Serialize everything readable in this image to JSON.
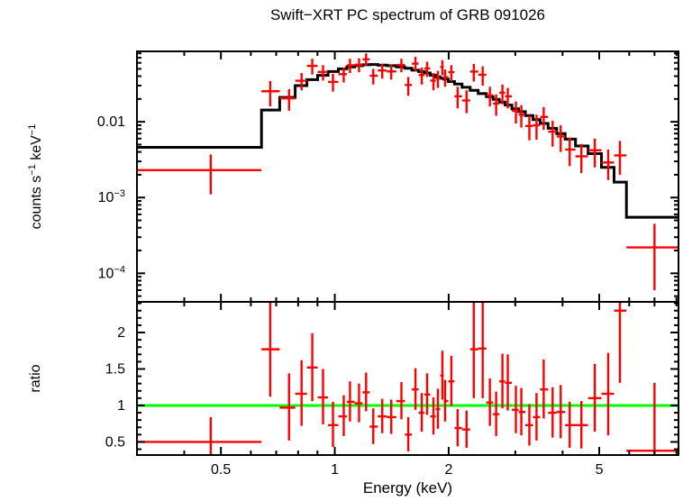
{
  "chart_data": {
    "type": "scatter",
    "title": "Swift−XRT PC spectrum of GRB 091026",
    "xlabel": "Energy (keV)",
    "xscale": "log",
    "xlim": [
      0.3,
      8.1
    ],
    "xticks_major": [
      0.5,
      1,
      2,
      5
    ],
    "xtick_labels": [
      "0.5",
      "1",
      "2",
      "5"
    ],
    "xticks_minor": [
      0.4,
      0.6,
      0.7,
      0.8,
      0.9,
      3,
      4,
      6,
      7,
      8
    ],
    "legend": "none",
    "grid": false,
    "colors": {
      "data": "#ff0000",
      "model": "#000000",
      "refline": "#00ff00",
      "frame": "#000000",
      "background": "#ffffff"
    },
    "panels": [
      {
        "name": "spectrum",
        "ylabel_parts": {
          "pre": "counts s",
          "sup1": "−1",
          "mid": " keV",
          "sup2": "−1"
        },
        "yscale": "log",
        "ylim": [
          4.2e-05,
          0.085
        ],
        "yticks_major": [
          0.01,
          0.001,
          0.0001
        ],
        "ytick_labels": [
          {
            "base": "0.01",
            "sup": ""
          },
          {
            "base": "10",
            "sup": "−3"
          },
          {
            "base": "10",
            "sup": "−4"
          }
        ],
        "yticks_minor": [
          5e-05,
          6e-05,
          7e-05,
          8e-05,
          9e-05,
          0.0002,
          0.0003,
          0.0004,
          0.0005,
          0.0006,
          0.0007,
          0.0008,
          0.0009,
          0.002,
          0.003,
          0.004,
          0.005,
          0.006,
          0.007,
          0.008,
          0.009,
          0.02,
          0.03,
          0.04,
          0.05,
          0.06,
          0.07,
          0.08
        ],
        "points_format": [
          "energy_keV",
          "bin_lo",
          "bin_hi",
          "rate",
          "rate_lo",
          "rate_hi"
        ],
        "points": [
          [
            0.47,
            0.3,
            0.64,
            0.0023,
            0.0011,
            0.0037
          ],
          [
            0.675,
            0.64,
            0.715,
            0.0253,
            0.016,
            0.0345
          ],
          [
            0.757,
            0.715,
            0.786,
            0.0204,
            0.014,
            0.027
          ],
          [
            0.817,
            0.786,
            0.844,
            0.0348,
            0.026,
            0.044
          ],
          [
            0.872,
            0.844,
            0.901,
            0.0547,
            0.042,
            0.068
          ],
          [
            0.931,
            0.901,
            0.96,
            0.0455,
            0.035,
            0.056
          ],
          [
            0.989,
            0.96,
            1.022,
            0.0336,
            0.025,
            0.043
          ],
          [
            1.056,
            1.022,
            1.076,
            0.0425,
            0.033,
            0.052
          ],
          [
            1.097,
            1.076,
            1.128,
            0.0557,
            0.044,
            0.068
          ],
          [
            1.159,
            1.128,
            1.184,
            0.0567,
            0.045,
            0.069
          ],
          [
            1.21,
            1.184,
            1.237,
            0.0667,
            0.054,
            0.08
          ],
          [
            1.264,
            1.237,
            1.299,
            0.0405,
            0.031,
            0.05
          ],
          [
            1.335,
            1.299,
            1.372,
            0.0476,
            0.037,
            0.058
          ],
          [
            1.41,
            1.372,
            1.454,
            0.0462,
            0.036,
            0.057
          ],
          [
            1.5,
            1.454,
            1.532,
            0.0562,
            0.045,
            0.068
          ],
          [
            1.564,
            1.532,
            1.599,
            0.0306,
            0.022,
            0.039
          ],
          [
            1.634,
            1.599,
            1.666,
            0.0586,
            0.046,
            0.072
          ],
          [
            1.698,
            1.666,
            1.726,
            0.0414,
            0.031,
            0.052
          ],
          [
            1.754,
            1.726,
            1.788,
            0.0506,
            0.039,
            0.062
          ],
          [
            1.823,
            1.788,
            1.848,
            0.0349,
            0.026,
            0.044
          ],
          [
            1.873,
            1.848,
            1.899,
            0.0371,
            0.028,
            0.047
          ],
          [
            1.925,
            1.899,
            1.941,
            0.0529,
            0.041,
            0.065
          ],
          [
            1.957,
            1.941,
            1.995,
            0.0387,
            0.029,
            0.049
          ],
          [
            2.033,
            1.995,
            2.072,
            0.0452,
            0.034,
            0.056
          ],
          [
            2.112,
            2.072,
            2.17,
            0.0217,
            0.015,
            0.029
          ],
          [
            2.23,
            2.17,
            2.279,
            0.0191,
            0.013,
            0.026
          ],
          [
            2.33,
            2.279,
            2.394,
            0.046,
            0.034,
            0.058
          ],
          [
            2.46,
            2.394,
            2.514,
            0.0418,
            0.03,
            0.054
          ],
          [
            2.57,
            2.514,
            2.62,
            0.0224,
            0.016,
            0.029
          ],
          [
            2.67,
            2.62,
            2.721,
            0.0174,
            0.012,
            0.023
          ],
          [
            2.774,
            2.721,
            2.82,
            0.0242,
            0.017,
            0.031
          ],
          [
            2.866,
            2.82,
            2.938,
            0.0217,
            0.015,
            0.028
          ],
          [
            3.011,
            2.938,
            3.061,
            0.0139,
            0.0095,
            0.0185
          ],
          [
            3.112,
            3.061,
            3.189,
            0.0124,
            0.0084,
            0.0166
          ],
          [
            3.268,
            3.189,
            3.34,
            0.0088,
            0.0057,
            0.0121
          ],
          [
            3.414,
            3.34,
            3.489,
            0.009,
            0.0058,
            0.0124
          ],
          [
            3.566,
            3.489,
            3.664,
            0.0116,
            0.0078,
            0.0156
          ],
          [
            3.765,
            3.664,
            3.859,
            0.0074,
            0.0047,
            0.0103
          ],
          [
            3.955,
            3.859,
            4.064,
            0.0064,
            0.004,
            0.009
          ],
          [
            4.177,
            4.064,
            4.328,
            0.0043,
            0.0026,
            0.0062
          ],
          [
            4.485,
            4.328,
            4.672,
            0.0035,
            0.0021,
            0.0051
          ],
          [
            4.867,
            4.672,
            5.069,
            0.0042,
            0.0025,
            0.006
          ],
          [
            5.28,
            5.069,
            5.472,
            0.0029,
            0.0017,
            0.0043
          ],
          [
            5.67,
            5.472,
            5.9,
            0.0036,
            0.002,
            0.0056
          ],
          [
            7.0,
            5.9,
            8.1,
            0.00022,
            6e-05,
            0.00045
          ]
        ],
        "model_step_values": [
          0.0046,
          0.0143,
          0.021,
          0.03,
          0.036,
          0.041,
          0.046,
          0.05,
          0.053,
          0.055,
          0.0565,
          0.057,
          0.056,
          0.055,
          0.053,
          0.051,
          0.048,
          0.046,
          0.044,
          0.041,
          0.039,
          0.0375,
          0.0365,
          0.034,
          0.0315,
          0.0285,
          0.026,
          0.0235,
          0.0215,
          0.0198,
          0.0182,
          0.0166,
          0.0148,
          0.0136,
          0.0121,
          0.0107,
          0.0095,
          0.0082,
          0.007,
          0.0059,
          0.0048,
          0.0038,
          0.0025,
          0.0016,
          0.00055
        ]
      },
      {
        "name": "ratio",
        "ylabel": "ratio",
        "yscale": "linear",
        "ylim": [
          0.32,
          2.42
        ],
        "yticks_major": [
          0.5,
          1,
          1.5,
          2
        ],
        "ytick_labels": [
          "0.5",
          "1",
          "1.5",
          "2"
        ],
        "yticks_minor": [
          0.4,
          0.6,
          0.7,
          0.8,
          0.9,
          1.1,
          1.2,
          1.3,
          1.4,
          1.6,
          1.7,
          1.8,
          1.9,
          2.1,
          2.2,
          2.3,
          2.4
        ],
        "refline_y": 1,
        "points_format": [
          "energy_keV",
          "bin_lo",
          "bin_hi",
          "ratio",
          "ratio_lo",
          "ratio_hi"
        ],
        "points": [
          [
            0.47,
            0.3,
            0.64,
            0.5,
            0.28,
            0.84
          ],
          [
            0.675,
            0.64,
            0.715,
            1.77,
            1.12,
            2.6
          ],
          [
            0.757,
            0.715,
            0.786,
            0.97,
            0.52,
            1.44
          ],
          [
            0.817,
            0.786,
            0.844,
            1.16,
            0.72,
            1.62
          ],
          [
            0.872,
            0.844,
            0.901,
            1.52,
            1.06,
            1.99
          ],
          [
            0.931,
            0.901,
            0.96,
            1.11,
            0.74,
            1.5
          ],
          [
            0.989,
            0.96,
            1.022,
            0.73,
            0.43,
            1.05
          ],
          [
            1.056,
            1.022,
            1.076,
            0.85,
            0.58,
            1.14
          ],
          [
            1.097,
            1.076,
            1.128,
            1.05,
            0.78,
            1.33
          ],
          [
            1.159,
            1.128,
            1.184,
            1.03,
            0.77,
            1.3
          ],
          [
            1.21,
            1.184,
            1.237,
            1.18,
            0.92,
            1.45
          ],
          [
            1.264,
            1.237,
            1.299,
            0.71,
            0.47,
            0.96
          ],
          [
            1.335,
            1.299,
            1.372,
            0.85,
            0.62,
            1.09
          ],
          [
            1.41,
            1.372,
            1.454,
            0.84,
            0.61,
            1.08
          ],
          [
            1.5,
            1.454,
            1.532,
            1.06,
            0.81,
            1.32
          ],
          [
            1.564,
            1.532,
            1.599,
            0.6,
            0.37,
            0.84
          ],
          [
            1.634,
            1.599,
            1.666,
            1.22,
            0.94,
            1.51
          ],
          [
            1.698,
            1.666,
            1.726,
            0.9,
            0.64,
            1.17
          ],
          [
            1.754,
            1.726,
            1.788,
            1.15,
            0.87,
            1.44
          ],
          [
            1.823,
            1.788,
            1.848,
            0.85,
            0.6,
            1.11
          ],
          [
            1.873,
            1.848,
            1.899,
            0.95,
            0.68,
            1.23
          ],
          [
            1.925,
            1.899,
            1.941,
            1.41,
            1.08,
            1.75
          ],
          [
            1.957,
            1.941,
            1.995,
            1.06,
            0.78,
            1.35
          ],
          [
            2.033,
            1.995,
            2.072,
            1.33,
            0.99,
            1.68
          ],
          [
            2.112,
            2.072,
            2.17,
            0.69,
            0.44,
            0.95
          ],
          [
            2.23,
            2.17,
            2.279,
            0.67,
            0.42,
            0.93
          ],
          [
            2.33,
            2.279,
            2.394,
            1.77,
            1.1,
            2.7
          ],
          [
            2.46,
            2.394,
            2.514,
            1.78,
            1.1,
            2.72
          ],
          [
            2.57,
            2.514,
            2.62,
            1.04,
            0.72,
            1.37
          ],
          [
            2.67,
            2.62,
            2.721,
            0.88,
            0.58,
            1.19
          ],
          [
            2.774,
            2.721,
            2.82,
            1.33,
            0.96,
            1.71
          ],
          [
            2.866,
            2.82,
            2.938,
            1.31,
            0.93,
            1.7
          ],
          [
            3.011,
            2.938,
            3.061,
            0.94,
            0.62,
            1.27
          ],
          [
            3.112,
            3.061,
            3.189,
            0.91,
            0.59,
            1.24
          ],
          [
            3.268,
            3.189,
            3.34,
            0.73,
            0.45,
            1.02
          ],
          [
            3.414,
            3.34,
            3.489,
            0.84,
            0.52,
            1.17
          ],
          [
            3.566,
            3.489,
            3.664,
            1.22,
            0.82,
            1.63
          ],
          [
            3.765,
            3.664,
            3.859,
            0.9,
            0.56,
            1.25
          ],
          [
            3.955,
            3.859,
            4.064,
            0.91,
            0.55,
            1.28
          ],
          [
            4.177,
            4.064,
            4.328,
            0.73,
            0.42,
            1.05
          ],
          [
            4.485,
            4.328,
            4.672,
            0.73,
            0.41,
            1.06
          ],
          [
            4.867,
            4.672,
            5.069,
            1.1,
            0.64,
            1.57
          ],
          [
            5.28,
            5.069,
            5.472,
            1.16,
            0.59,
            1.72
          ],
          [
            5.67,
            5.472,
            5.9,
            2.3,
            1.31,
            3.3
          ],
          [
            7.0,
            5.9,
            8.1,
            0.38,
            0.2,
            1.31
          ]
        ]
      }
    ]
  }
}
